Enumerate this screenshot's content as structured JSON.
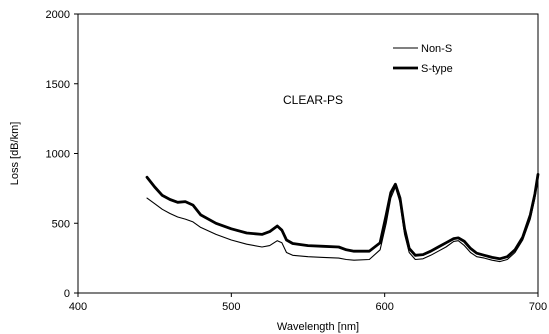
{
  "chart_data": {
    "type": "line",
    "title": "",
    "annotation": "CLEAR-PS",
    "xlabel": "Wavelength [nm]",
    "ylabel": "Loss [dB/km]",
    "xlim": [
      400,
      700
    ],
    "ylim": [
      0,
      2000
    ],
    "xticks": [
      400,
      500,
      600,
      700
    ],
    "yticks": [
      0,
      500,
      1000,
      1500,
      2000
    ],
    "grid": false,
    "legend_position": "top-right",
    "series": [
      {
        "name": "Non-S",
        "color": "#000000",
        "x": [
          445,
          450,
          455,
          460,
          465,
          470,
          475,
          480,
          490,
          500,
          510,
          520,
          525,
          530,
          533,
          536,
          540,
          550,
          560,
          570,
          575,
          580,
          590,
          597,
          601,
          604,
          607,
          610,
          613,
          616,
          620,
          625,
          630,
          635,
          640,
          645,
          648,
          652,
          656,
          660,
          665,
          670,
          675,
          680,
          685,
          690,
          695,
          698,
          700
        ],
        "y": [
          680,
          640,
          600,
          570,
          545,
          530,
          510,
          470,
          420,
          380,
          350,
          330,
          340,
          375,
          360,
          290,
          270,
          260,
          255,
          250,
          240,
          235,
          240,
          310,
          500,
          680,
          760,
          650,
          420,
          290,
          240,
          245,
          270,
          300,
          330,
          370,
          375,
          340,
          290,
          260,
          250,
          235,
          225,
          240,
          290,
          380,
          530,
          680,
          830
        ]
      },
      {
        "name": "S-type",
        "color": "#000000",
        "x": [
          445,
          450,
          455,
          460,
          465,
          470,
          475,
          480,
          490,
          500,
          510,
          520,
          525,
          530,
          533,
          536,
          540,
          550,
          560,
          570,
          575,
          580,
          590,
          597,
          601,
          604,
          607,
          610,
          613,
          616,
          620,
          625,
          630,
          635,
          640,
          645,
          648,
          652,
          656,
          660,
          665,
          670,
          675,
          680,
          685,
          690,
          695,
          698,
          700
        ],
        "y": [
          830,
          760,
          700,
          670,
          650,
          655,
          630,
          560,
          500,
          460,
          430,
          420,
          440,
          480,
          450,
          380,
          355,
          340,
          335,
          330,
          310,
          300,
          300,
          360,
          560,
          720,
          780,
          680,
          460,
          320,
          270,
          275,
          300,
          330,
          360,
          390,
          395,
          370,
          320,
          285,
          270,
          255,
          245,
          260,
          310,
          400,
          560,
          710,
          850
        ]
      }
    ]
  }
}
